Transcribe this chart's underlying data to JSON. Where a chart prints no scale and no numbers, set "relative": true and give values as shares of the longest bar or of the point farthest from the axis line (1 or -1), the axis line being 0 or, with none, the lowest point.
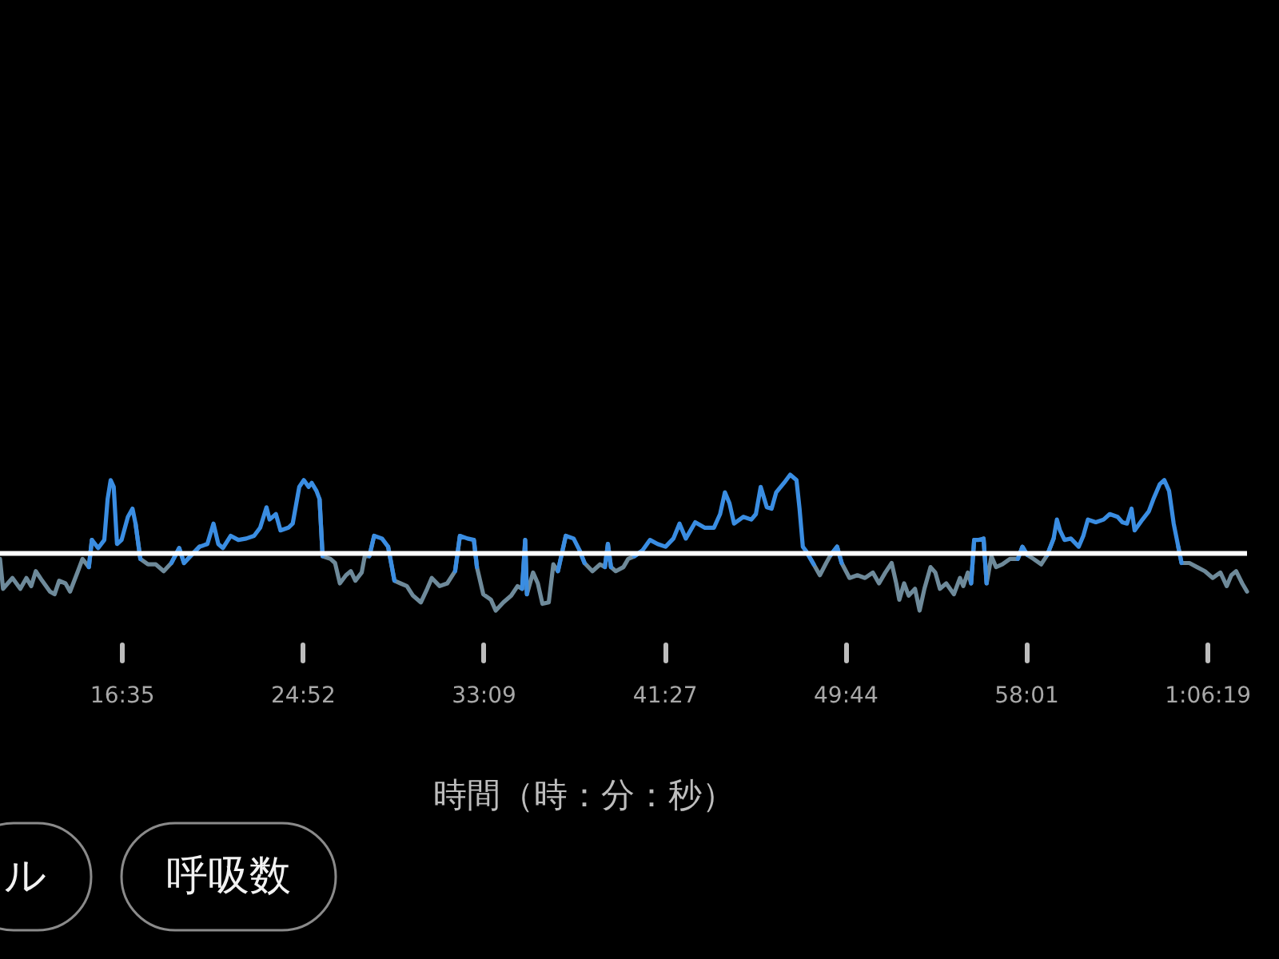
{
  "chart_data": {
    "type": "line",
    "relative": true,
    "xlabel": "時間（時：分：秒）",
    "tick_labels": "x",
    "annotations": [
      "ル",
      "呼吸数"
    ],
    "xlim": [
      11.01,
      68.14
    ],
    "xticks": [
      {
        "value": 16.5833,
        "label": "16:35"
      },
      {
        "value": 24.8667,
        "label": "24:52"
      },
      {
        "value": 33.15,
        "label": "33:09"
      },
      {
        "value": 41.45,
        "label": "41:27"
      },
      {
        "value": 49.7333,
        "label": "49:44"
      },
      {
        "value": 58.0167,
        "label": "58:01"
      },
      {
        "value": 66.3167,
        "label": "1:06:19"
      }
    ],
    "ref_lines": [
      {
        "axis": "y",
        "value": 0.42,
        "color": "#ffffff"
      }
    ],
    "x": [
      11.01,
      11.15,
      11.58,
      11.94,
      12.22,
      12.44,
      12.65,
      12.94,
      13.3,
      13.51,
      13.72,
      14.01,
      14.22,
      14.58,
      14.79,
      15.08,
      15.22,
      15.51,
      15.79,
      15.94,
      16.08,
      16.22,
      16.37,
      16.58,
      16.87,
      17.08,
      17.22,
      17.44,
      17.79,
      18.15,
      18.51,
      18.86,
      19.22,
      19.44,
      19.79,
      20.15,
      20.51,
      20.79,
      21.01,
      21.22,
      21.58,
      21.93,
      22.29,
      22.65,
      22.93,
      23.22,
      23.36,
      23.65,
      23.86,
      24.22,
      24.42,
      24.72,
      24.93,
      25.15,
      25.29,
      25.51,
      25.65,
      25.79,
      26.15,
      26.36,
      26.58,
      26.86,
      27.08,
      27.29,
      27.58,
      27.72,
      27.93,
      28.15,
      28.51,
      28.79,
      29.08,
      29.36,
      29.65,
      29.93,
      30.29,
      30.58,
      30.79,
      31.15,
      31.5,
      31.86,
      32.08,
      32.43,
      32.72,
      32.86,
      33.15,
      33.5,
      33.72,
      34.07,
      34.43,
      34.72,
      34.93,
      35.07,
      35.15,
      35.43,
      35.65,
      35.86,
      36.15,
      36.36,
      36.57,
      36.93,
      37.29,
      37.57,
      37.79,
      38.15,
      38.5,
      38.72,
      38.86,
      39.0,
      39.22,
      39.57,
      39.79,
      40.07,
      40.43,
      40.79,
      41.14,
      41.5,
      41.86,
      42.14,
      42.43,
      42.86,
      43.29,
      43.72,
      44.0,
      44.22,
      44.43,
      44.64,
      45.07,
      45.43,
      45.64,
      45.86,
      46.14,
      46.36,
      46.57,
      46.93,
      47.21,
      47.5,
      47.64,
      47.79,
      47.93,
      48.29,
      48.57,
      48.86,
      49.07,
      49.36,
      49.57,
      49.93,
      50.29,
      50.64,
      51.0,
      51.28,
      51.57,
      51.86,
      52.07,
      52.21,
      52.43,
      52.64,
      52.93,
      53.14,
      53.36,
      53.64,
      53.86,
      54.07,
      54.36,
      54.71,
      54.99,
      55.14,
      55.35,
      55.5,
      55.64,
      55.85,
      56.07,
      56.21,
      56.43,
      56.64,
      56.93,
      57.28,
      57.64,
      57.85,
      58.07,
      58.36,
      58.71,
      58.99,
      59.28,
      59.43,
      59.57,
      59.78,
      60.07,
      60.43,
      60.64,
      60.85,
      61.21,
      61.57,
      61.85,
      62.21,
      62.43,
      62.64,
      62.85,
      62.99,
      63.35,
      63.64,
      63.85,
      64.14,
      64.35,
      64.57,
      64.78,
      64.99,
      65.14,
      65.5,
      65.85,
      66.21,
      66.57,
      66.92,
      67.21,
      67.42,
      67.64,
      67.92,
      68.14
    ],
    "series": [
      {
        "color": "#6e8a9a",
        "values": [
          0.38,
          0.16,
          0.24,
          0.16,
          0.24,
          0.18,
          0.29,
          0.22,
          0.14,
          0.12,
          0.22,
          0.2,
          0.14,
          0.29,
          0.38,
          0.32,
          0.52,
          null,
          null,
          null,
          null,
          null,
          null,
          null,
          null,
          null,
          0.64,
          0.38,
          0.34,
          0.34,
          0.29,
          0.35,
          0.46,
          0.35,
          0.41,
          0.47,
          null,
          null,
          null,
          null,
          null,
          null,
          null,
          null,
          null,
          null,
          null,
          null,
          null,
          null,
          null,
          null,
          null,
          null,
          null,
          null,
          0.82,
          0.4,
          0.38,
          0.35,
          0.2,
          0.26,
          0.29,
          0.22,
          0.28,
          0.4,
          0.4,
          0.55,
          null,
          0.47,
          0.22,
          0.2,
          0.18,
          0.11,
          0.06,
          0.16,
          0.24,
          0.18,
          0.2,
          0.29,
          0.55,
          null,
          0.52,
          0.32,
          0.12,
          0.08,
          0,
          0.06,
          0.11,
          0.18,
          0.16,
          0.52,
          0.12,
          0.28,
          0.2,
          0.05,
          0.06,
          0.34,
          0.29,
          0.55,
          null,
          0.44,
          0.35,
          0.29,
          0.34,
          0.32,
          0.49,
          0.32,
          0.29,
          0.32,
          0.38,
          0.4,
          0.44,
          null,
          null,
          null,
          null,
          null,
          null,
          null,
          null,
          null,
          null,
          null,
          null,
          null,
          null,
          null,
          null,
          null,
          null,
          null,
          null,
          null,
          null,
          null,
          null,
          null,
          0.44,
          0.34,
          0.26,
          0.35,
          0.41,
          0.47,
          0.35,
          0.24,
          0.26,
          0.24,
          0.28,
          0.2,
          0.28,
          0.35,
          0.2,
          0.08,
          0.2,
          0.11,
          0.16,
          0,
          0.16,
          0.32,
          0.28,
          0.16,
          0.2,
          0.12,
          0.24,
          0.18,
          0.28,
          0.2,
          0.52,
          null,
          0.53,
          0.2,
          0.4,
          0.32,
          0.34,
          0.38,
          0.38,
          0.47,
          0.41,
          0.38,
          0.34,
          0.41,
          0.53,
          null,
          null,
          null,
          null,
          null,
          null,
          null,
          null,
          null,
          null,
          null,
          null,
          null,
          null,
          null,
          null,
          null,
          null,
          null,
          null,
          null,
          null,
          0.47,
          0.35,
          0.35,
          0.32,
          0.29,
          0.24,
          0.28,
          0.18,
          0.26,
          0.29,
          0.2,
          0.14
        ]
      },
      {
        "color": "#3a8de2",
        "values": [
          null,
          null,
          null,
          null,
          null,
          null,
          null,
          null,
          null,
          null,
          null,
          null,
          null,
          null,
          null,
          0.32,
          0.52,
          0.46,
          0.52,
          0.82,
          0.96,
          0.91,
          0.49,
          0.52,
          0.69,
          0.75,
          0.64,
          0.38,
          null,
          null,
          null,
          0.35,
          0.46,
          0.35,
          0.41,
          0.47,
          0.49,
          0.64,
          0.49,
          0.46,
          0.55,
          0.52,
          0.53,
          0.55,
          0.61,
          0.76,
          0.67,
          0.71,
          0.59,
          0.61,
          0.64,
          0.91,
          0.96,
          0.91,
          0.94,
          0.88,
          0.82,
          0.4,
          null,
          null,
          null,
          null,
          null,
          null,
          null,
          null,
          0.4,
          0.55,
          0.53,
          0.47,
          0.22,
          null,
          null,
          null,
          null,
          null,
          null,
          null,
          null,
          0.29,
          0.55,
          0.53,
          0.52,
          0.32,
          null,
          null,
          null,
          null,
          null,
          null,
          0.16,
          0.52,
          0.12,
          null,
          null,
          null,
          null,
          null,
          0.29,
          0.55,
          0.53,
          0.44,
          0.35,
          null,
          null,
          0.32,
          0.49,
          0.32,
          null,
          null,
          null,
          0.4,
          0.44,
          0.52,
          0.49,
          0.47,
          0.53,
          0.64,
          0.53,
          0.65,
          0.61,
          0.61,
          0.71,
          0.87,
          0.79,
          0.64,
          0.69,
          0.67,
          0.71,
          0.91,
          0.76,
          0.75,
          0.87,
          0.94,
          1,
          0.96,
          0.75,
          0.47,
          0.44,
          0.34,
          null,
          null,
          0.41,
          0.47,
          0.35,
          null,
          null,
          null,
          null,
          null,
          null,
          null,
          null,
          null,
          null,
          null,
          null,
          null,
          null,
          null,
          null,
          null,
          null,
          null,
          null,
          null,
          null,
          0.2,
          0.52,
          0.52,
          0.53,
          0.2,
          null,
          null,
          null,
          null,
          0.38,
          0.47,
          0.41,
          null,
          null,
          0.41,
          0.53,
          0.67,
          0.59,
          0.52,
          0.53,
          0.47,
          0.55,
          0.67,
          0.65,
          0.67,
          0.71,
          0.69,
          0.65,
          0.64,
          0.75,
          0.59,
          0.67,
          0.73,
          0.82,
          0.93,
          0.96,
          0.88,
          0.64,
          0.47,
          0.35,
          null,
          null,
          null,
          null,
          null,
          null,
          null,
          null,
          null,
          null
        ]
      }
    ]
  }
}
